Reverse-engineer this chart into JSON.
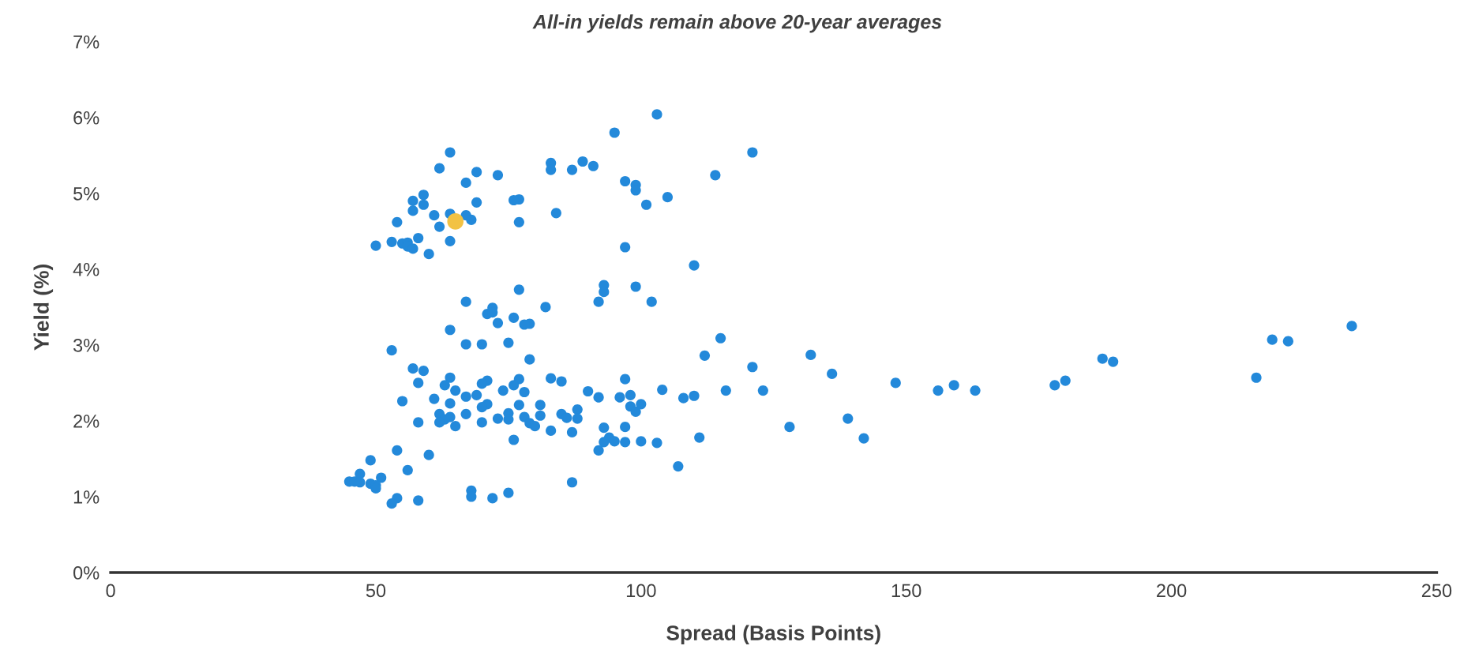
{
  "chart_data": {
    "type": "scatter",
    "title": "All-in yields remain above 20-year averages",
    "xlabel": "Spread (Basis Points)",
    "ylabel": "Yield (%)",
    "xlim": [
      0,
      250
    ],
    "xticks": [
      0,
      50,
      100,
      150,
      200,
      250
    ],
    "ylim": [
      0,
      7
    ],
    "yticks": [
      {
        "value": 0,
        "label": "0%"
      },
      {
        "value": 1,
        "label": "1%"
      },
      {
        "value": 2,
        "label": "2%"
      },
      {
        "value": 3,
        "label": "3%"
      },
      {
        "value": 4,
        "label": "4%"
      },
      {
        "value": 5,
        "label": "5%"
      },
      {
        "value": 6,
        "label": "6%"
      },
      {
        "value": 7,
        "label": "7%"
      }
    ],
    "grid": false,
    "legend": false,
    "marker": "circle",
    "series": [
      {
        "color": "#2389da",
        "x": [
          103,
          95,
          121,
          64,
          89,
          83,
          91,
          62,
          83,
          87,
          69,
          73,
          114,
          97,
          67,
          99,
          99,
          59,
          105,
          77,
          76,
          57,
          69,
          59,
          101,
          57,
          84,
          64,
          61,
          67,
          68,
          77,
          54,
          62,
          58,
          64,
          53,
          55,
          56,
          50,
          56,
          57,
          97,
          60,
          110,
          77,
          93,
          99,
          93,
          67,
          92,
          102,
          82,
          72,
          71,
          72,
          76,
          79,
          78,
          73,
          64,
          115,
          67,
          70,
          75,
          53,
          132,
          112,
          79,
          57,
          121,
          59,
          136,
          83,
          64,
          97,
          77,
          85,
          71,
          58,
          76,
          70,
          148,
          63,
          159,
          178,
          180,
          187,
          189,
          219,
          222,
          234,
          216,
          156,
          163,
          104,
          116,
          123,
          65,
          74,
          90,
          78,
          98,
          69,
          67,
          96,
          61,
          92,
          110,
          108,
          55,
          64,
          71,
          77,
          81,
          98,
          100,
          70,
          99,
          88,
          62,
          67,
          75,
          85,
          64,
          78,
          86,
          81,
          73,
          63,
          62,
          75,
          88,
          79,
          58,
          70,
          65,
          80,
          93,
          97,
          128,
          139,
          83,
          87,
          94,
          142,
          111,
          76,
          93,
          95,
          97,
          100,
          103,
          92,
          54,
          60,
          107,
          45,
          46,
          49,
          47,
          56,
          51,
          47,
          49,
          50,
          50,
          87,
          68,
          75,
          68,
          72,
          54,
          58,
          53
        ],
        "values": [
          6.04,
          5.8,
          5.54,
          5.54,
          5.42,
          5.4,
          5.36,
          5.33,
          5.31,
          5.31,
          5.28,
          5.24,
          5.24,
          5.16,
          5.14,
          5.11,
          5.04,
          4.98,
          4.95,
          4.92,
          4.91,
          4.9,
          4.88,
          4.85,
          4.85,
          4.77,
          4.74,
          4.73,
          4.71,
          4.71,
          4.65,
          4.62,
          4.62,
          4.56,
          4.41,
          4.37,
          4.36,
          4.34,
          4.35,
          4.31,
          4.3,
          4.27,
          4.29,
          4.2,
          4.05,
          3.73,
          3.79,
          3.77,
          3.7,
          3.57,
          3.57,
          3.57,
          3.5,
          3.49,
          3.41,
          3.43,
          3.36,
          3.28,
          3.27,
          3.29,
          3.2,
          3.09,
          3.01,
          3.01,
          3.03,
          2.93,
          2.87,
          2.86,
          2.81,
          2.69,
          2.71,
          2.66,
          2.62,
          2.56,
          2.57,
          2.55,
          2.55,
          2.52,
          2.53,
          2.5,
          2.47,
          2.49,
          2.5,
          2.47,
          2.47,
          2.47,
          2.53,
          2.82,
          2.78,
          3.07,
          3.05,
          3.25,
          2.57,
          2.4,
          2.4,
          2.41,
          2.4,
          2.4,
          2.4,
          2.4,
          2.39,
          2.38,
          2.34,
          2.34,
          2.32,
          2.31,
          2.29,
          2.31,
          2.33,
          2.3,
          2.26,
          2.23,
          2.22,
          2.21,
          2.21,
          2.19,
          2.22,
          2.18,
          2.12,
          2.15,
          2.09,
          2.09,
          2.1,
          2.09,
          2.05,
          2.05,
          2.04,
          2.07,
          2.03,
          2.02,
          1.98,
          2.02,
          2.03,
          1.97,
          1.98,
          1.98,
          1.93,
          1.93,
          1.91,
          1.92,
          1.92,
          2.03,
          1.87,
          1.85,
          1.78,
          1.77,
          1.78,
          1.75,
          1.72,
          1.73,
          1.72,
          1.73,
          1.71,
          1.61,
          1.61,
          1.55,
          1.4,
          1.2,
          1.2,
          1.48,
          1.3,
          1.35,
          1.25,
          1.19,
          1.17,
          1.15,
          1.11,
          1.19,
          1.08,
          1.05,
          1.0,
          0.98,
          0.98,
          0.95,
          0.91
        ]
      },
      {
        "color": "#f2c244",
        "x": [
          65
        ],
        "values": [
          4.63
        ]
      }
    ]
  }
}
